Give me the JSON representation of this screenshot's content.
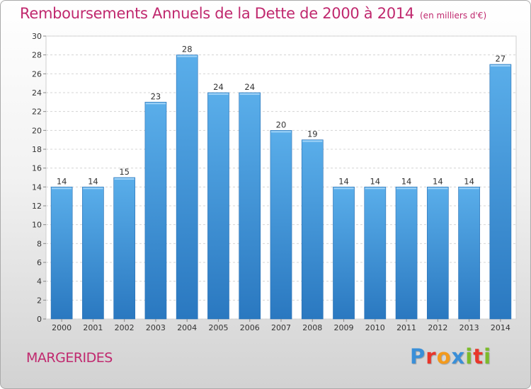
{
  "title": "Remboursements Annuels de la Dette de 2000 à 2014",
  "unit_note": "(en milliers d'€)",
  "commune": "MARGERIDES",
  "logo": {
    "letters": [
      "P",
      "r",
      "o",
      "x",
      "i",
      "t",
      "i"
    ],
    "colors": [
      "#3a8fd8",
      "#e8362b",
      "#f39a1d",
      "#3a8fd8",
      "#7cbb2a",
      "#e8362b",
      "#7cbb2a"
    ]
  },
  "chart_data": {
    "type": "bar",
    "title": "Remboursements Annuels de la Dette de 2000 à 2014",
    "xlabel": "",
    "ylabel": "",
    "categories": [
      "2000",
      "2001",
      "2002",
      "2003",
      "2004",
      "2005",
      "2006",
      "2007",
      "2008",
      "2009",
      "2010",
      "2011",
      "2012",
      "2013",
      "2014"
    ],
    "values": [
      14,
      14,
      15,
      23,
      28,
      24,
      24,
      20,
      19,
      14,
      14,
      14,
      14,
      14,
      27
    ],
    "ylim": [
      0,
      30
    ],
    "yticks": [
      "0",
      "2",
      "4",
      "6",
      "8",
      "10",
      "12",
      "14",
      "16",
      "18",
      "20",
      "22",
      "24",
      "26",
      "28",
      "30"
    ],
    "grid": true,
    "bar_color_top": "#5aaeea",
    "bar_color_bottom": "#2a78c0"
  }
}
